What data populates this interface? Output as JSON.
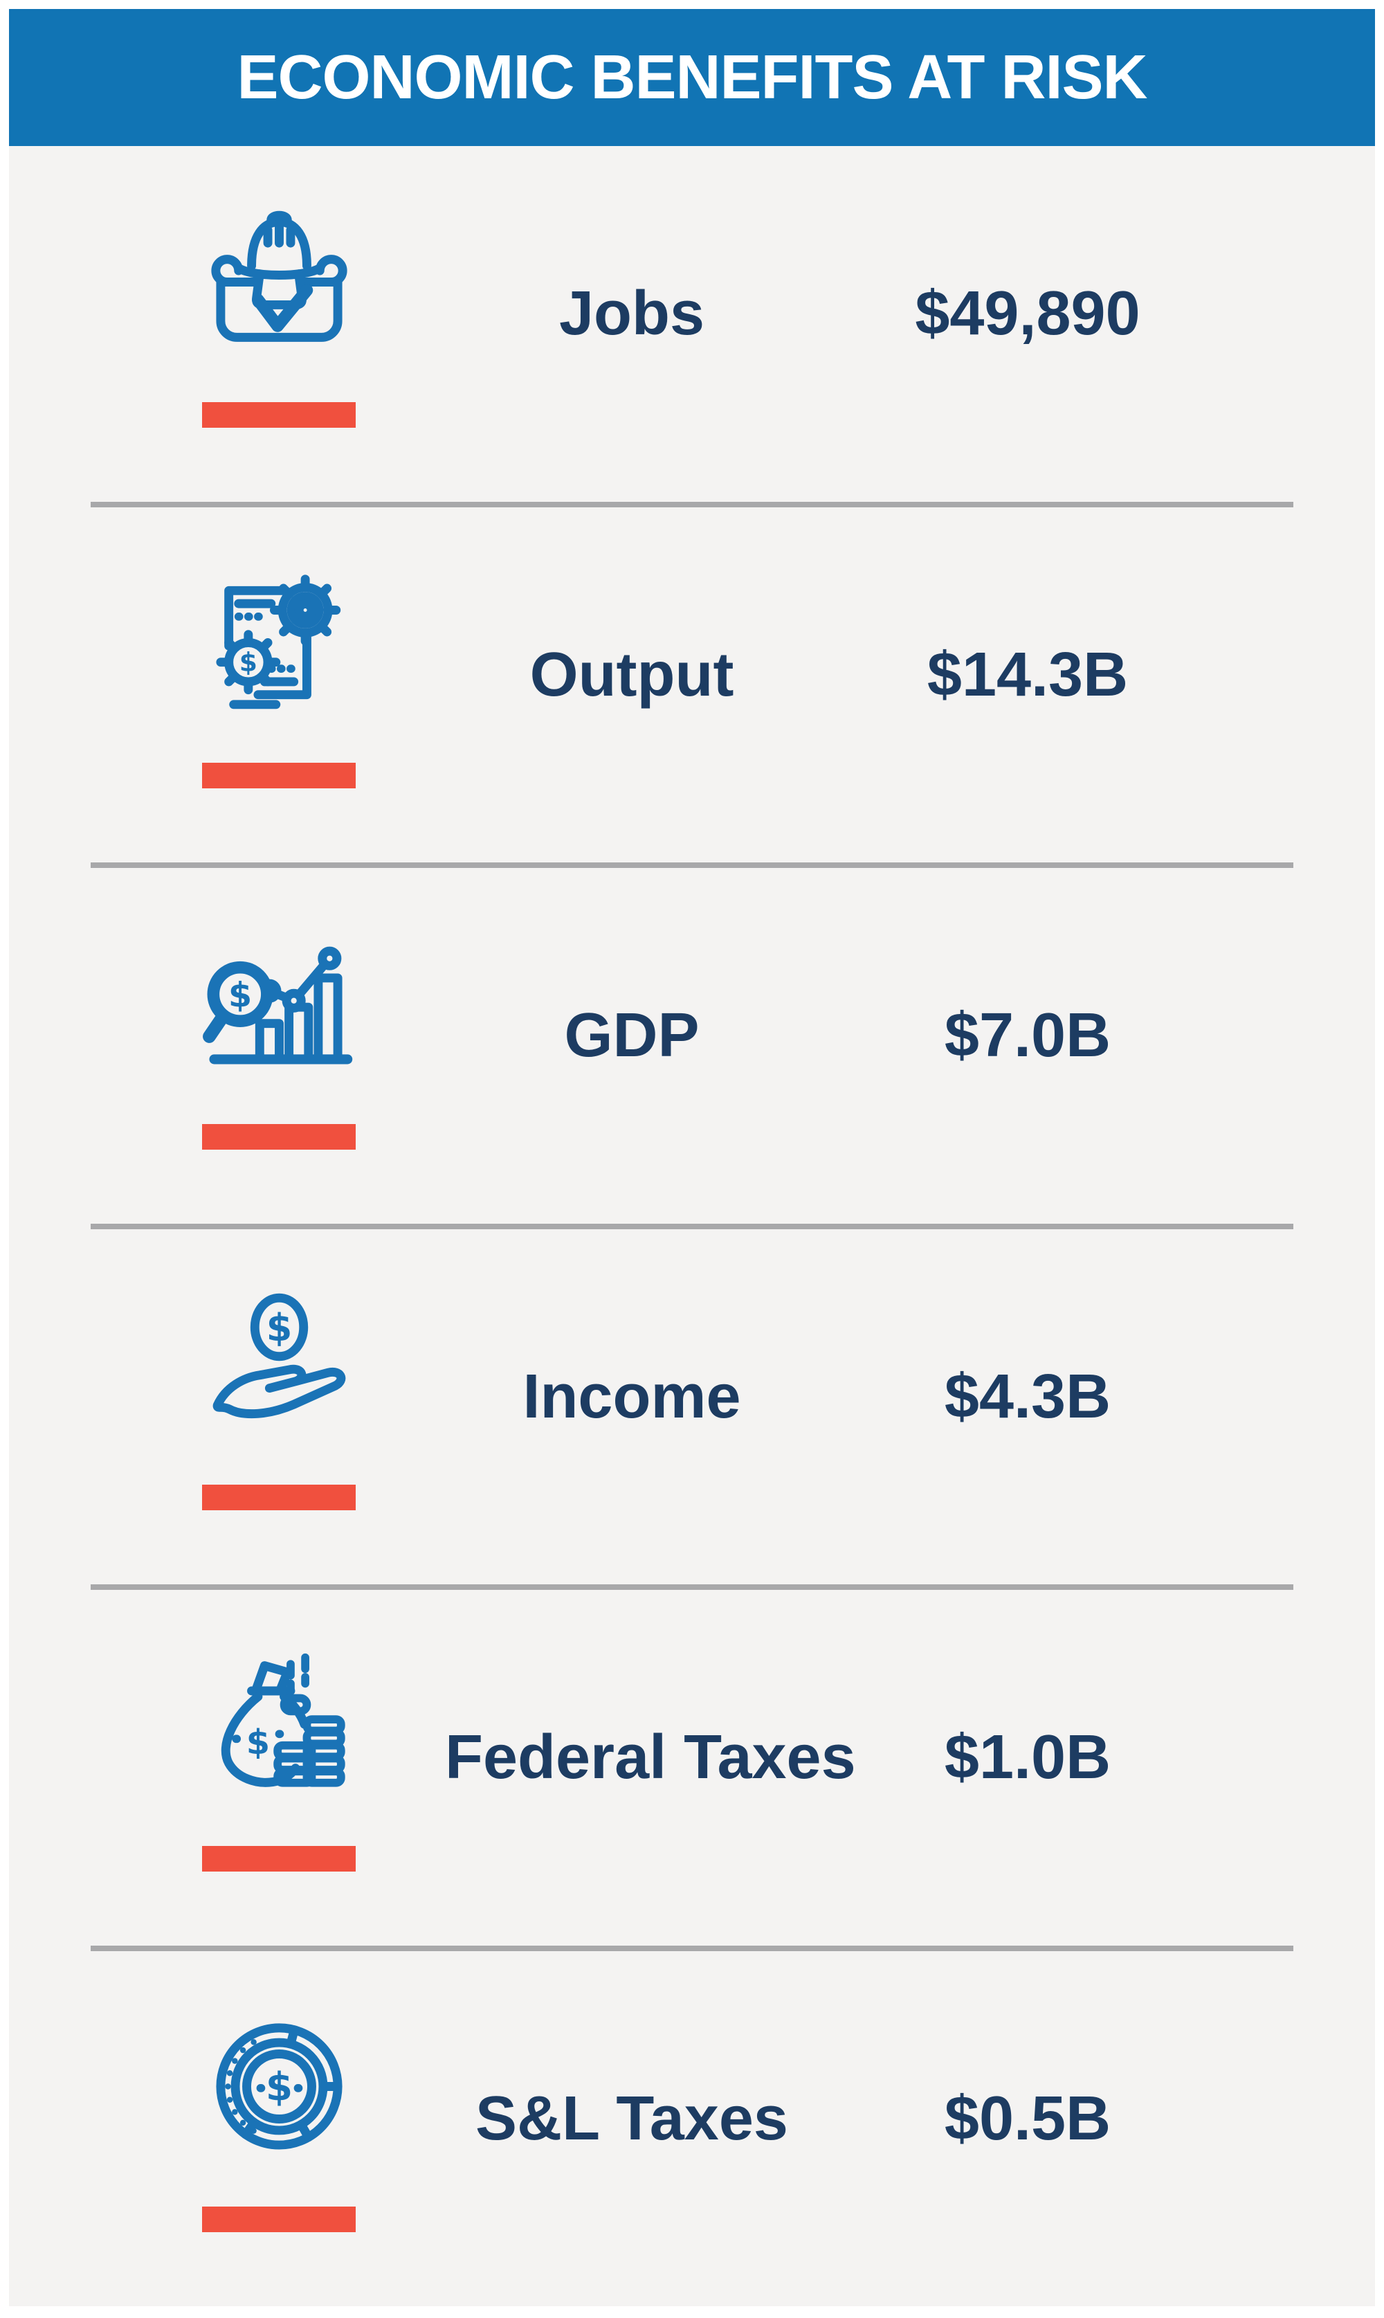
{
  "header": {
    "title": "ECONOMIC BENEFITS AT RISK"
  },
  "rows": [
    {
      "icon": "jobs-hard-hat-icon",
      "label": "Jobs",
      "value": "$49,890"
    },
    {
      "icon": "output-document-gears-icon",
      "label": "Output",
      "value": "$14.3B"
    },
    {
      "icon": "gdp-chart-magnifier-icon",
      "label": "GDP",
      "value": "$7.0B"
    },
    {
      "icon": "income-hand-coin-icon",
      "label": "Income",
      "value": "$4.3B"
    },
    {
      "icon": "federal-taxes-money-bag-icon",
      "label": "Federal Taxes",
      "value": "$1.0B"
    },
    {
      "icon": "sl-taxes-coin-pie-icon",
      "label": "S&L Taxes",
      "value": "$0.5B"
    }
  ],
  "colors": {
    "header_blue": "#1174b4",
    "icon_blue": "#1a73b6",
    "text_navy": "#1d3c62",
    "accent_red": "#f0503e",
    "divider_gray": "#a8a8aa",
    "panel_bg": "#f4f3f2"
  }
}
